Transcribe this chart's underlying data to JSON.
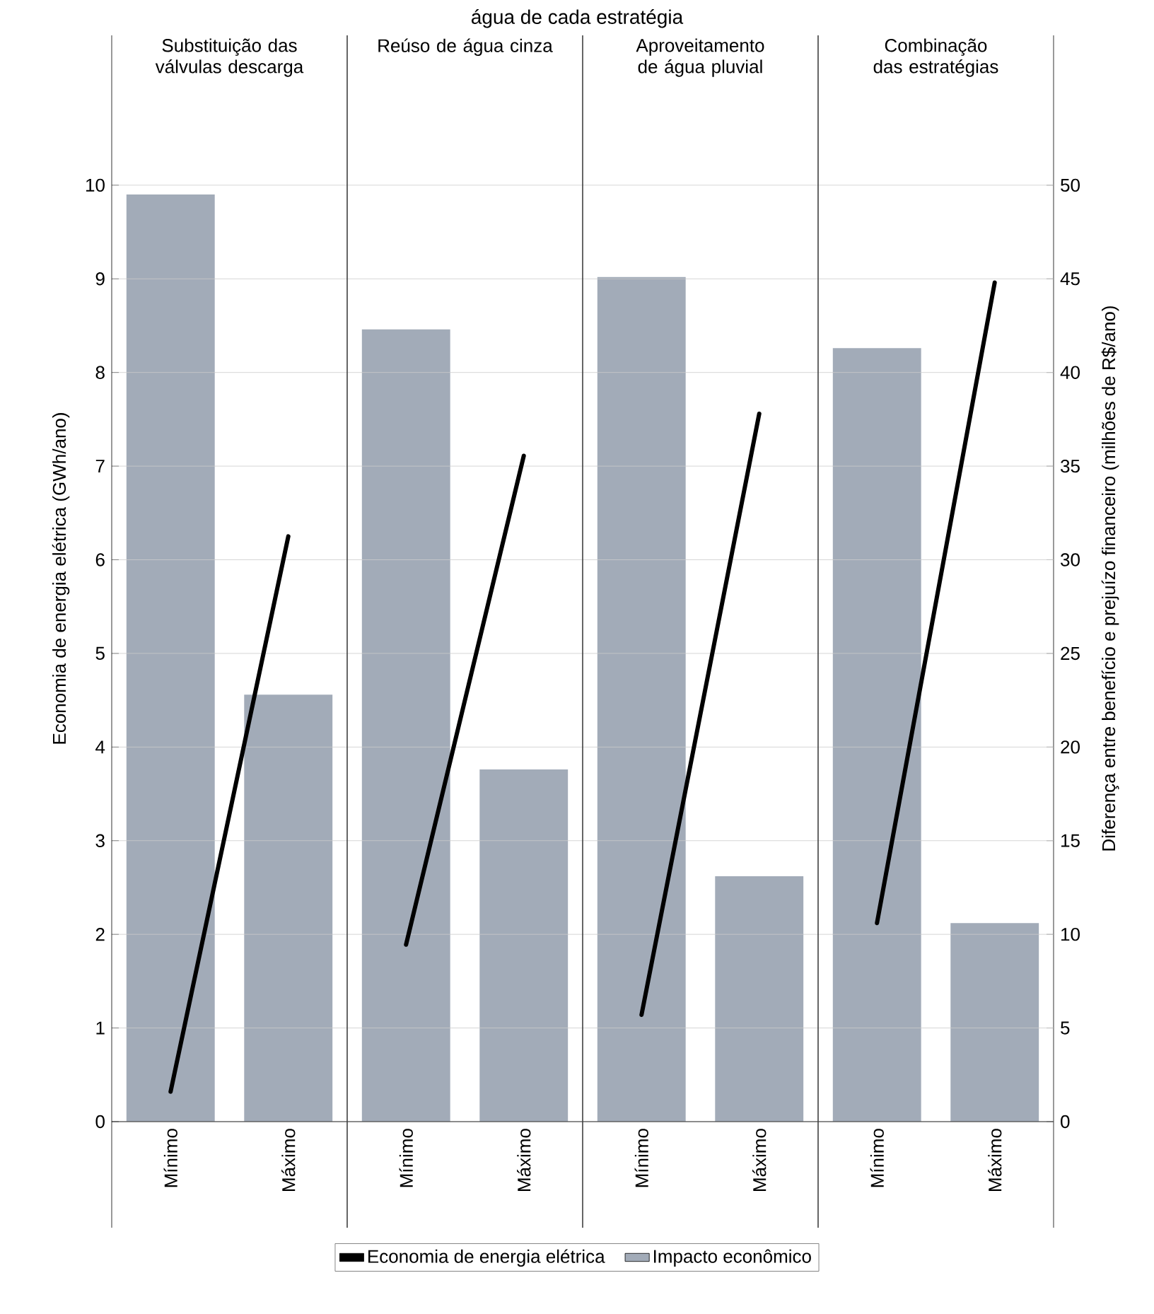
{
  "chart_data": {
    "type": "bar",
    "annotations": [
      "água de cada estratégia",
      "Substituição das válvulas descarga",
      "Reúso de água cinza",
      "Aproveitamento de água pluvial",
      "Combinação das estratégias"
    ],
    "ylabel": "Economia de energia elétrica (GWh/ano)",
    "y2label": "Diferença entre benefício e prejuízo financeiro (milhões de R$/ano)",
    "legend": "bottom",
    "grid": "y",
    "categories": [
      "Mínimo",
      "Máximo",
      "Mínimo",
      "Máximo",
      "Mínimo",
      "Máximo",
      "Mínimo",
      "Máximo"
    ],
    "ylim": [
      0,
      11.6
    ],
    "yticks": [
      0,
      1,
      2,
      3,
      4,
      5,
      6,
      7,
      8,
      9,
      10
    ],
    "y2lim": [
      0,
      58
    ],
    "y2ticks": [
      0,
      5,
      10,
      15,
      20,
      25,
      30,
      35,
      40,
      45,
      50
    ],
    "series": [
      {
        "name": "Economia de energia elétrica",
        "type": "line",
        "color": "#000000",
        "values": [
          0.32,
          6.25,
          null,
          null,
          null,
          null,
          null,
          null
        ]
      },
      {
        "name": "Impacto econômico",
        "axis": "y2",
        "color": "#a2abb8",
        "values": [
          49.5,
          22.8,
          42.3,
          18.8,
          45.1,
          13.1,
          41.3,
          10.6
        ]
      },
      {
        "type": "line",
        "color": "#000000",
        "values": [
          null,
          null,
          1.89,
          7.11,
          null,
          null,
          null,
          null
        ]
      },
      {
        "type": "line",
        "color": "#000000",
        "values": [
          null,
          null,
          null,
          null,
          1.14,
          7.56,
          null,
          null
        ]
      },
      {
        "type": "line",
        "color": "#000000",
        "values": [
          null,
          null,
          null,
          null,
          null,
          null,
          2.12,
          8.96
        ]
      }
    ]
  }
}
